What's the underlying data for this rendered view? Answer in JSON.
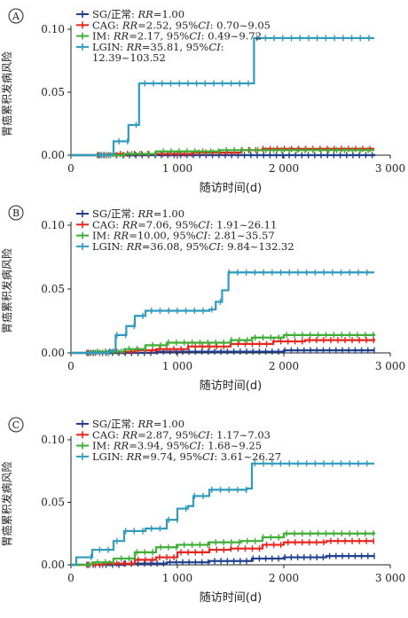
{
  "chart_data": [
    {
      "type": "line",
      "panel_label": "A",
      "xlabel": "随访时间(d)",
      "ylabel": "胃癌累积发病风险",
      "xlim": [
        0,
        3000
      ],
      "ylim": [
        0,
        0.1
      ],
      "x_ticks": [
        "0",
        "1 000",
        "2 000",
        "3 000"
      ],
      "y_ticks": [
        "0.00",
        "0.05",
        "0.10"
      ],
      "legend_position": "top-left",
      "series": [
        {
          "name": "SG/正常",
          "rr": "1.00",
          "ci": "",
          "color": "#1f3f8f",
          "points": [
            [
              0,
              0
            ],
            [
              2850,
              0.001
            ]
          ]
        },
        {
          "name": "CAG",
          "rr": "2.52",
          "ci": "0.70~9.05",
          "color": "#e8251d",
          "points": [
            [
              0,
              0
            ],
            [
              350,
              0.001
            ],
            [
              1150,
              0.002
            ],
            [
              1600,
              0.004
            ],
            [
              1800,
              0.005
            ],
            [
              2850,
              0.005
            ]
          ]
        },
        {
          "name": "IM",
          "rr": "2.17",
          "ci": "0.49~9.72",
          "color": "#3daf35",
          "points": [
            [
              0,
              0
            ],
            [
              500,
              0.001
            ],
            [
              800,
              0.003
            ],
            [
              1400,
              0.004
            ],
            [
              1900,
              0.004
            ],
            [
              2850,
              0.004
            ]
          ]
        },
        {
          "name": "LGIN",
          "rr": "35.81",
          "ci": "12.39~103.52",
          "color": "#2e9bbf",
          "points": [
            [
              0,
              0
            ],
            [
              380,
              0.001
            ],
            [
              400,
              0.011
            ],
            [
              540,
              0.024
            ],
            [
              640,
              0.057
            ],
            [
              1700,
              0.057
            ],
            [
              1720,
              0.093
            ],
            [
              2850,
              0.093
            ]
          ]
        }
      ]
    },
    {
      "type": "line",
      "panel_label": "B",
      "xlabel": "随访时间(d)",
      "ylabel": "胃癌累积发病风险",
      "xlim": [
        0,
        3000
      ],
      "ylim": [
        0,
        0.1
      ],
      "x_ticks": [
        "0",
        "1 000",
        "2 000",
        "3 000"
      ],
      "y_ticks": [
        "0.00",
        "0.05",
        "0.10"
      ],
      "legend_position": "top-left",
      "series": [
        {
          "name": "SG/正常",
          "rr": "1.00",
          "ci": "",
          "color": "#1f3f8f",
          "points": [
            [
              0,
              0
            ],
            [
              800,
              0.001
            ],
            [
              1400,
              0.001
            ],
            [
              2000,
              0.002
            ],
            [
              2850,
              0.002
            ]
          ]
        },
        {
          "name": "CAG",
          "rr": "7.06",
          "ci": "1.91~26.11",
          "color": "#e8251d",
          "points": [
            [
              0,
              0
            ],
            [
              300,
              0.001
            ],
            [
              600,
              0.002
            ],
            [
              800,
              0.003
            ],
            [
              1100,
              0.005
            ],
            [
              1500,
              0.007
            ],
            [
              1900,
              0.009
            ],
            [
              2200,
              0.01
            ],
            [
              2850,
              0.011
            ]
          ]
        },
        {
          "name": "IM",
          "rr": "10.00",
          "ci": "2.81~35.57",
          "color": "#3daf35",
          "points": [
            [
              0,
              0
            ],
            [
              200,
              0.001
            ],
            [
              500,
              0.003
            ],
            [
              700,
              0.006
            ],
            [
              900,
              0.008
            ],
            [
              1500,
              0.01
            ],
            [
              1700,
              0.012
            ],
            [
              2000,
              0.014
            ],
            [
              2850,
              0.015
            ]
          ]
        },
        {
          "name": "LGIN",
          "rr": "36.08",
          "ci": "9.84~132.32",
          "color": "#2e9bbf",
          "points": [
            [
              0,
              0
            ],
            [
              360,
              0.002
            ],
            [
              420,
              0.014
            ],
            [
              520,
              0.021
            ],
            [
              600,
              0.029
            ],
            [
              700,
              0.033
            ],
            [
              1300,
              0.034
            ],
            [
              1360,
              0.04
            ],
            [
              1420,
              0.049
            ],
            [
              1480,
              0.063
            ],
            [
              2850,
              0.063
            ]
          ]
        }
      ]
    },
    {
      "type": "line",
      "panel_label": "C",
      "xlabel": "随访时间(d)",
      "ylabel": "胃癌累积发病风险",
      "xlim": [
        0,
        3000
      ],
      "ylim": [
        0,
        0.1
      ],
      "x_ticks": [
        "0",
        "1 000",
        "2 000",
        "3 000"
      ],
      "y_ticks": [
        "0.00",
        "0.05",
        "0.10"
      ],
      "legend_position": "top-left",
      "series": [
        {
          "name": "SG/正常",
          "rr": "1.00",
          "ci": "",
          "color": "#1f3f8f",
          "points": [
            [
              0,
              0
            ],
            [
              500,
              0.001
            ],
            [
              900,
              0.002
            ],
            [
              1300,
              0.003
            ],
            [
              1700,
              0.005
            ],
            [
              2000,
              0.006
            ],
            [
              2400,
              0.007
            ],
            [
              2850,
              0.007
            ]
          ]
        },
        {
          "name": "CAG",
          "rr": "2.87",
          "ci": "1.17~7.03",
          "color": "#e8251d",
          "points": [
            [
              0,
              0
            ],
            [
              300,
              0.001
            ],
            [
              600,
              0.004
            ],
            [
              800,
              0.006
            ],
            [
              1000,
              0.01
            ],
            [
              1300,
              0.012
            ],
            [
              1500,
              0.013
            ],
            [
              1800,
              0.016
            ],
            [
              2000,
              0.018
            ],
            [
              2400,
              0.019
            ],
            [
              2850,
              0.019
            ]
          ]
        },
        {
          "name": "IM",
          "rr": "3.94",
          "ci": "1.68~9.25",
          "color": "#3daf35",
          "points": [
            [
              0,
              0
            ],
            [
              200,
              0.002
            ],
            [
              400,
              0.005
            ],
            [
              600,
              0.01
            ],
            [
              800,
              0.014
            ],
            [
              1000,
              0.016
            ],
            [
              1300,
              0.018
            ],
            [
              1600,
              0.019
            ],
            [
              1800,
              0.022
            ],
            [
              2000,
              0.025
            ],
            [
              2850,
              0.026
            ]
          ]
        },
        {
          "name": "LGIN",
          "rr": "9.74",
          "ci": "3.61~26.27",
          "color": "#2e9bbf",
          "points": [
            [
              0,
              0
            ],
            [
              50,
              0.006
            ],
            [
              200,
              0.012
            ],
            [
              400,
              0.019
            ],
            [
              500,
              0.027
            ],
            [
              700,
              0.029
            ],
            [
              900,
              0.036
            ],
            [
              1000,
              0.045
            ],
            [
              1100,
              0.047
            ],
            [
              1150,
              0.055
            ],
            [
              1300,
              0.06
            ],
            [
              1650,
              0.061
            ],
            [
              1700,
              0.081
            ],
            [
              2850,
              0.081
            ]
          ]
        }
      ]
    }
  ]
}
